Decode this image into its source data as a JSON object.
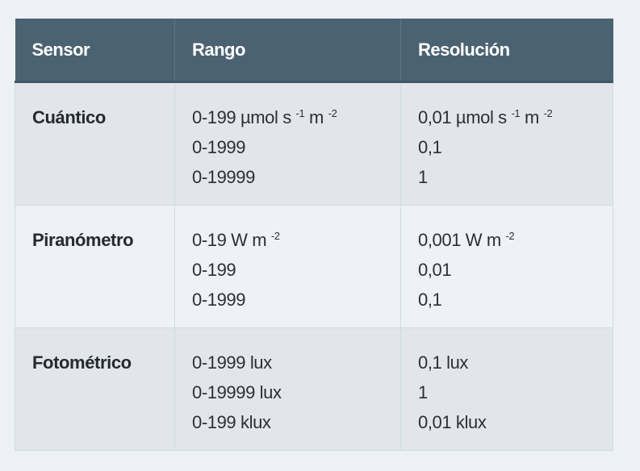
{
  "headers": [
    "Sensor",
    "Rango",
    "Resolución"
  ],
  "rows": [
    {
      "sensor": "Cuántico",
      "rango": [
        {
          "t": "0-199 µmol s ",
          "s1": "-1",
          "m": " m ",
          "s2": "-2"
        },
        {
          "t": "0-1999"
        },
        {
          "t": "0-19999"
        }
      ],
      "resolucion": [
        {
          "t": "0,01 µmol s ",
          "s1": "-1",
          "m": " m ",
          "s2": "-2"
        },
        {
          "t": "0,1"
        },
        {
          "t": "1"
        }
      ]
    },
    {
      "sensor": "Piranómetro",
      "rango": [
        {
          "t": "0-19 W m ",
          "s1": "-2"
        },
        {
          "t": "0-199"
        },
        {
          "t": "0-1999"
        }
      ],
      "resolucion": [
        {
          "t": "0,001 W m ",
          "s1": "-2"
        },
        {
          "t": "0,01"
        },
        {
          "t": "0,1"
        }
      ]
    },
    {
      "sensor": "Fotométrico",
      "rango": [
        {
          "t": "0-1999 lux"
        },
        {
          "t": "0-19999 lux"
        },
        {
          "t": "0-199 klux"
        }
      ],
      "resolucion": [
        {
          "t": "0,1 lux"
        },
        {
          "t": "1"
        },
        {
          "t": "0,01 klux"
        }
      ]
    }
  ],
  "colors": {
    "header_bg": "#4b6272",
    "row_odd": "#e2e5ea",
    "row_even": "#eef1f5"
  }
}
